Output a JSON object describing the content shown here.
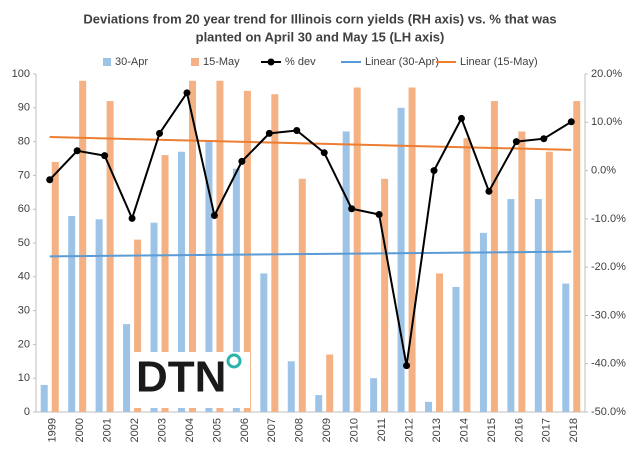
{
  "chart_data": {
    "type": "bar",
    "title": [
      "Deviations from 20 year trend for Illinois corn yields (RH axis) vs. % that was",
      "planted on April 30 and May 15 (LH axis)"
    ],
    "logo": "DTN",
    "categories": [
      "1999",
      "2000",
      "2001",
      "2002",
      "2003",
      "2004",
      "2005",
      "2006",
      "2007",
      "2008",
      "2009",
      "2010",
      "2011",
      "2012",
      "2013",
      "2014",
      "2015",
      "2016",
      "2017",
      "2018"
    ],
    "series": [
      {
        "name": "30-Apr",
        "color": "#9dc3e6",
        "values": [
          8,
          58,
          57,
          26,
          56,
          77,
          80,
          72,
          41,
          15,
          5,
          83,
          10,
          90,
          3,
          37,
          53,
          63,
          63,
          38
        ]
      },
      {
        "name": "15-May",
        "color": "#f4b183",
        "values": [
          74,
          98,
          92,
          51,
          76,
          98,
          98,
          95,
          94,
          69,
          17,
          96,
          69,
          96,
          41,
          81,
          92,
          83,
          77,
          92
        ]
      },
      {
        "name": "% dev",
        "color": "#000000",
        "type": "line",
        "axis": "y2",
        "values": [
          -1.9,
          4.1,
          3.1,
          -9.9,
          7.7,
          16.1,
          -9.3,
          1.9,
          7.7,
          8.3,
          3.7,
          -7.9,
          -9.1,
          -40.4,
          0,
          10.8,
          -4.3,
          6.0,
          6.6,
          10.1
        ]
      }
    ],
    "trendlines": [
      {
        "name": "Linear (30-Apr)",
        "color": "#5b9bd5"
      },
      {
        "name": "Linear (15-May)",
        "color": "#ed7d31"
      }
    ],
    "ylim": [
      0,
      100
    ],
    "yticks": [
      0,
      10,
      20,
      30,
      40,
      50,
      60,
      70,
      80,
      90,
      100
    ],
    "y2lim": [
      -50,
      20
    ],
    "y2ticks": [
      {
        "value": -50,
        "label": "-50.0%"
      },
      {
        "value": -40,
        "label": "-40.0%"
      },
      {
        "value": -30,
        "label": "-30.0%"
      },
      {
        "value": -20,
        "label": "-20.0%"
      },
      {
        "value": -10,
        "label": "-10.0%"
      },
      {
        "value": 0,
        "label": "0.0%"
      },
      {
        "value": 10,
        "label": "10.0%"
      },
      {
        "value": 20,
        "label": "20.0%"
      }
    ],
    "grid": false
  }
}
